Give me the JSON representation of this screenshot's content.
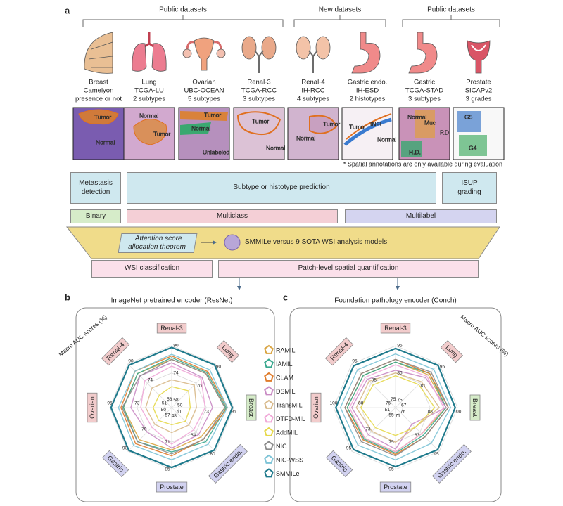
{
  "figure": {
    "panel_labels": [
      "a",
      "b",
      "c"
    ],
    "groups": [
      "Public datasets",
      "New datasets",
      "Public datasets"
    ],
    "datasets": [
      {
        "organ": "Breast",
        "name": "Camelyon",
        "task": "presence or not",
        "regions": [
          "Tumor",
          "Normal"
        ]
      },
      {
        "organ": "Lung",
        "name": "TCGA-LU",
        "task": "2 subtypes",
        "regions": [
          "Normal",
          "Tumor"
        ]
      },
      {
        "organ": "Ovarian",
        "name": "UBC-OCEAN",
        "task": "5 subtypes",
        "regions": [
          "Tumor",
          "Normal",
          "Unlabeled"
        ]
      },
      {
        "organ": "Renal-3",
        "name": "TCGA-RCC",
        "task": "3 subtypes",
        "regions": [
          "Tumor",
          "Normal"
        ]
      },
      {
        "organ": "Renal-4",
        "name": "IH-RCC",
        "task": "4 subtypes",
        "regions": [
          "Normal",
          "Tumor"
        ]
      },
      {
        "organ": "Gastric endo.",
        "name": "IH-ESD",
        "task": "2 histotypes",
        "regions": [
          "Tumor",
          "INFI",
          "Normal"
        ]
      },
      {
        "organ": "Gastric",
        "name": "TCGA-STAD",
        "task": "3 subtypes",
        "regions": [
          "Normal",
          "Muc",
          "P.D.",
          "H.D."
        ]
      },
      {
        "organ": "Prostate",
        "name": "SICAPv2",
        "task": "3 grades",
        "regions": [
          "G5",
          "G4"
        ]
      }
    ],
    "note": "* Spatial annotations are only available during evaluation",
    "tasks": [
      "Metastasis detection",
      "Subtype or histotype prediction",
      "ISUP grading"
    ],
    "label_types": [
      "Binary",
      "Multiclass",
      "Multilabel"
    ],
    "theorem": "Attention score allocation theorem",
    "comparison": "SMMILe versus 9 SOTA WSI analysis models",
    "outputs": [
      "WSI classification",
      "Patch-level spatial quantification"
    ]
  },
  "chart_data": [
    {
      "type": "radar",
      "title": "ImageNet pretrained encoder (ResNet)",
      "axis_label": "Macro AUC scores (%)",
      "axes": [
        {
          "name": "Renal-3",
          "color": "#f2cccc",
          "lim": [
            58,
            90
          ],
          "ticks": [
            58,
            74,
            90
          ]
        },
        {
          "name": "Lung",
          "color": "#f2cccc",
          "lim": [
            50,
            90
          ],
          "ticks": [
            50,
            70,
            90
          ]
        },
        {
          "name": "Breast",
          "color": "#d6ecc9",
          "lim": [
            51,
            95
          ],
          "ticks": [
            51,
            73,
            95
          ]
        },
        {
          "name": "Gastric endo.",
          "color": "#d2d2f0",
          "lim": [
            48,
            80
          ],
          "ticks": [
            48,
            64,
            80
          ]
        },
        {
          "name": "Prostate",
          "color": "#d2d2f0",
          "lim": [
            57,
            85
          ],
          "ticks": [
            57,
            71,
            85
          ]
        },
        {
          "name": "Gastric",
          "color": "#d2d2f0",
          "lim": [
            50,
            90
          ],
          "ticks": [
            50,
            70,
            90
          ]
        },
        {
          "name": "Ovarian",
          "color": "#f2cccc",
          "lim": [
            51,
            95
          ],
          "ticks": [
            51,
            73,
            95
          ]
        },
        {
          "name": "Renal-4",
          "color": "#f2cccc",
          "lim": [
            58,
            90
          ],
          "ticks": [
            58,
            74,
            90
          ]
        }
      ],
      "series": [
        {
          "name": "RAMIL",
          "color": "#d9a441",
          "values": [
            82,
            80,
            88,
            68,
            75,
            78,
            84,
            82
          ]
        },
        {
          "name": "IAMIL",
          "color": "#3aa88f",
          "values": [
            83,
            81,
            89,
            72,
            76,
            80,
            84,
            82
          ]
        },
        {
          "name": "CLAM",
          "color": "#e07b2a",
          "values": [
            84,
            82,
            90,
            70,
            78,
            82,
            86,
            84
          ]
        },
        {
          "name": "DSMIL",
          "color": "#c98bc4",
          "values": [
            80,
            76,
            78,
            66,
            74,
            70,
            78,
            80
          ]
        },
        {
          "name": "TransMIL",
          "color": "#d8b98a",
          "values": [
            70,
            68,
            65,
            58,
            66,
            62,
            66,
            70
          ]
        },
        {
          "name": "DTFD-MIL",
          "color": "#f0a8d8",
          "values": [
            78,
            75,
            72,
            62,
            72,
            65,
            70,
            76
          ]
        },
        {
          "name": "AddMIL",
          "color": "#e6d84a",
          "values": [
            66,
            62,
            60,
            55,
            62,
            58,
            60,
            64
          ]
        },
        {
          "name": "NIC",
          "color": "#8a8a8a",
          "values": [
            82,
            80,
            88,
            70,
            77,
            80,
            85,
            80
          ]
        },
        {
          "name": "NIC-WSS",
          "color": "#7cc3d6",
          "values": [
            85,
            84,
            90,
            74,
            80,
            84,
            88,
            84
          ]
        },
        {
          "name": "SMMILe",
          "color": "#1f7a8c",
          "values": [
            89,
            89,
            94,
            79,
            84,
            89,
            94,
            89
          ]
        }
      ]
    },
    {
      "type": "radar",
      "title": "Foundation pathology encoder (Conch)",
      "axis_label": "Macro AUC scores (%)",
      "axes": [
        {
          "name": "Renal-3",
          "color": "#f2cccc",
          "lim": [
            75,
            95
          ],
          "ticks": [
            75,
            85,
            95
          ]
        },
        {
          "name": "Lung",
          "color": "#f2cccc",
          "lim": [
            67,
            95
          ],
          "ticks": [
            67,
            81,
            95
          ]
        },
        {
          "name": "Breast",
          "color": "#d6ecc9",
          "lim": [
            76,
            100
          ],
          "ticks": [
            76,
            88,
            100
          ]
        },
        {
          "name": "Gastric endo.",
          "color": "#d2d2f0",
          "lim": [
            71,
            95
          ],
          "ticks": [
            71,
            83,
            95
          ]
        },
        {
          "name": "Prostate",
          "color": "#d2d2f0",
          "lim": [
            55,
            95
          ],
          "ticks": [
            55,
            75,
            95
          ]
        },
        {
          "name": "Gastric",
          "color": "#d2d2f0",
          "lim": [
            51,
            95
          ],
          "ticks": [
            51,
            73,
            95
          ]
        },
        {
          "name": "Ovarian",
          "color": "#f2cccc",
          "lim": [
            76,
            100
          ],
          "ticks": [
            76,
            88,
            100
          ]
        },
        {
          "name": "Renal-4",
          "color": "#f2cccc",
          "lim": [
            75,
            95
          ],
          "ticks": [
            75,
            85,
            95
          ]
        }
      ],
      "series": [
        {
          "values": [
            89,
            87,
            95,
            84,
            82,
            80,
            94,
            89
          ]
        },
        {
          "values": [
            89,
            88,
            95,
            85,
            83,
            81,
            94,
            89
          ]
        },
        {
          "values": [
            90,
            88,
            96,
            86,
            84,
            82,
            95,
            90
          ]
        },
        {
          "values": [
            86,
            85,
            95,
            78,
            80,
            76,
            92,
            87
          ]
        },
        {
          "values": [
            85,
            82,
            92,
            80,
            75,
            72,
            90,
            86
          ]
        },
        {
          "values": [
            88,
            86,
            94,
            84,
            82,
            80,
            93,
            88
          ]
        },
        {
          "values": [
            84,
            80,
            90,
            80,
            70,
            68,
            88,
            84
          ]
        },
        {
          "values": [
            90,
            89,
            96,
            86,
            85,
            84,
            95,
            90
          ]
        },
        {
          "values": [
            92,
            91,
            97,
            90,
            88,
            88,
            97,
            92
          ]
        },
        {
          "values": [
            94,
            94,
            99,
            94,
            93,
            93,
            99,
            94
          ]
        }
      ]
    }
  ]
}
